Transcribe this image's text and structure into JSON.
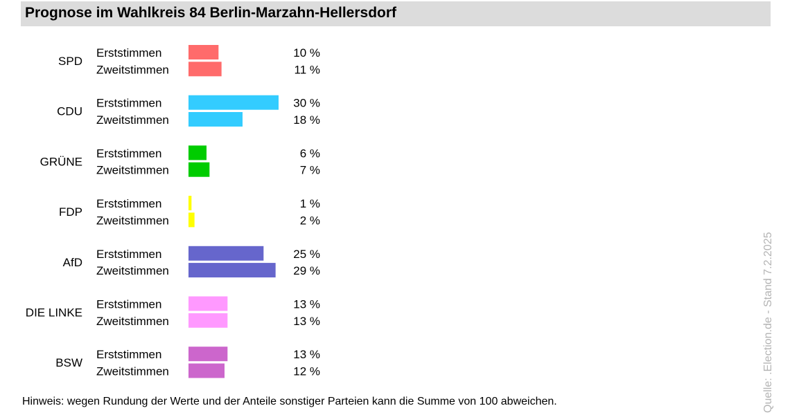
{
  "title": "Prognose im Wahlkreis 84 Berlin-Marzahn-Hellersdorf",
  "note": "Hinweis: wegen Rundung der Werte und der Anteile sonstiger Parteien kann die Summe von 100 abweichen.",
  "source": "Quelle: .Election.de - Stand 7.2.2025",
  "chart_data": {
    "type": "bar",
    "orientation": "horizontal",
    "value_suffix": " %",
    "ylim": [
      0,
      30
    ],
    "row_labels": [
      "Erststimmen",
      "Zweitstimmen"
    ],
    "groups": [
      {
        "party": "SPD",
        "color": "#ff6b6b",
        "values": [
          10,
          11
        ]
      },
      {
        "party": "CDU",
        "color": "#33ccff",
        "values": [
          30,
          18
        ]
      },
      {
        "party": "GRÜNE",
        "color": "#00cc00",
        "values": [
          6,
          7
        ]
      },
      {
        "party": "FDP",
        "color": "#ffff00",
        "values": [
          1,
          2
        ]
      },
      {
        "party": "AfD",
        "color": "#6666cc",
        "values": [
          25,
          29
        ]
      },
      {
        "party": "DIE LINKE",
        "color": "#ff99ff",
        "values": [
          13,
          13
        ]
      },
      {
        "party": "BSW",
        "color": "#cc66cc",
        "values": [
          13,
          12
        ]
      }
    ]
  }
}
